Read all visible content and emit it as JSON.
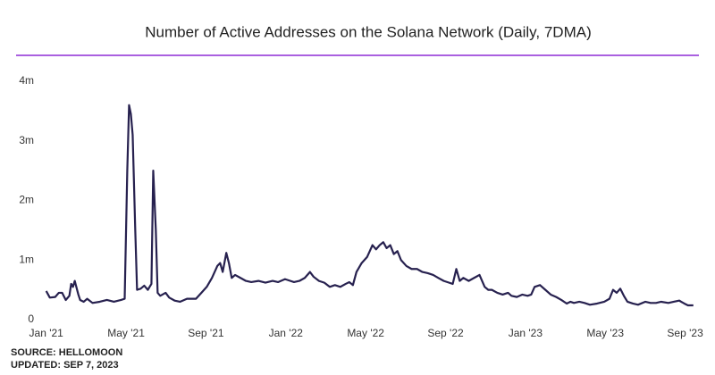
{
  "chart_data": {
    "type": "line",
    "title": "Number of Active Addresses on the Solana Network (Daily, 7DMA)",
    "notes": [
      "SOURCE: HELLOMOON",
      "UPDATED: SEP 7, 2023"
    ],
    "color": "#27214f",
    "accent_color": "#8e2bd6",
    "grid": false,
    "xlim": [
      -0.3,
      32.6
    ],
    "xticks": [
      {
        "value": 0,
        "label": "Jan '21"
      },
      {
        "value": 4,
        "label": "May '21"
      },
      {
        "value": 8,
        "label": "Sep '21"
      },
      {
        "value": 12,
        "label": "Jan '22"
      },
      {
        "value": 16,
        "label": "May '22"
      },
      {
        "value": 20,
        "label": "Sep '22"
      },
      {
        "value": 24,
        "label": "Jan '23"
      },
      {
        "value": 28,
        "label": "May '23"
      },
      {
        "value": 32,
        "label": "Sep '23"
      }
    ],
    "ylim": [
      0,
      4000000
    ],
    "yticks": [
      0,
      {
        "value": 1000000,
        "label": "1m"
      },
      {
        "value": 2000000,
        "label": "2m"
      },
      {
        "value": 3000000,
        "label": "3m"
      },
      {
        "value": 4000000,
        "label": "4m"
      }
    ],
    "x": [
      0,
      0.18,
      0.45,
      0.63,
      0.8,
      0.98,
      1.16,
      1.25,
      1.34,
      1.43,
      1.61,
      1.7,
      1.88,
      2.05,
      2.32,
      2.68,
      3.04,
      3.39,
      3.75,
      3.93,
      4.06,
      4.15,
      4.24,
      4.33,
      4.46,
      4.55,
      4.73,
      4.91,
      5.09,
      5.27,
      5.36,
      5.49,
      5.58,
      5.71,
      5.98,
      6.16,
      6.43,
      6.7,
      7.05,
      7.5,
      7.77,
      8.04,
      8.3,
      8.57,
      8.71,
      8.84,
      9.02,
      9.15,
      9.29,
      9.46,
      9.73,
      10.0,
      10.27,
      10.63,
      10.98,
      11.34,
      11.61,
      11.96,
      12.23,
      12.41,
      12.68,
      12.95,
      13.21,
      13.39,
      13.66,
      13.93,
      14.2,
      14.46,
      14.73,
      15.0,
      15.18,
      15.36,
      15.54,
      15.8,
      16.07,
      16.34,
      16.52,
      16.7,
      16.88,
      17.05,
      17.23,
      17.41,
      17.59,
      17.77,
      18.04,
      18.3,
      18.57,
      18.84,
      19.11,
      19.38,
      19.64,
      19.91,
      20.18,
      20.36,
      20.54,
      20.71,
      20.89,
      21.16,
      21.43,
      21.7,
      21.96,
      22.14,
      22.32,
      22.59,
      22.86,
      23.13,
      23.3,
      23.57,
      23.84,
      24.11,
      24.29,
      24.46,
      24.73,
      25.0,
      25.27,
      25.54,
      25.8,
      26.07,
      26.25,
      26.43,
      26.7,
      26.96,
      27.23,
      27.59,
      27.95,
      28.21,
      28.39,
      28.57,
      28.75,
      28.93,
      29.11,
      29.38,
      29.64,
      30.0,
      30.27,
      30.54,
      30.8,
      31.16,
      31.43,
      31.7,
      31.96,
      32.14,
      32.41
    ],
    "values": [
      480000,
      370000,
      380000,
      450000,
      450000,
      330000,
      400000,
      600000,
      550000,
      650000,
      420000,
      330000,
      300000,
      350000,
      280000,
      300000,
      330000,
      300000,
      330000,
      350000,
      2500000,
      3600000,
      3450000,
      3100000,
      1500000,
      500000,
      520000,
      570000,
      500000,
      600000,
      2500000,
      1500000,
      450000,
      400000,
      450000,
      370000,
      320000,
      300000,
      350000,
      350000,
      450000,
      550000,
      700000,
      900000,
      950000,
      800000,
      1120000,
      950000,
      700000,
      750000,
      700000,
      650000,
      630000,
      650000,
      620000,
      650000,
      630000,
      680000,
      650000,
      630000,
      650000,
      700000,
      800000,
      720000,
      650000,
      620000,
      550000,
      580000,
      550000,
      600000,
      630000,
      580000,
      800000,
      950000,
      1050000,
      1250000,
      1180000,
      1250000,
      1300000,
      1200000,
      1250000,
      1100000,
      1150000,
      1000000,
      900000,
      850000,
      850000,
      800000,
      780000,
      750000,
      700000,
      650000,
      620000,
      600000,
      850000,
      650000,
      700000,
      650000,
      700000,
      750000,
      550000,
      500000,
      500000,
      450000,
      420000,
      450000,
      400000,
      380000,
      420000,
      400000,
      420000,
      550000,
      580000,
      500000,
      420000,
      380000,
      330000,
      270000,
      300000,
      280000,
      300000,
      280000,
      250000,
      270000,
      300000,
      350000,
      500000,
      450000,
      520000,
      400000,
      300000,
      270000,
      250000,
      300000,
      280000,
      280000,
      300000,
      280000,
      300000,
      320000,
      270000,
      240000,
      240000
    ]
  }
}
